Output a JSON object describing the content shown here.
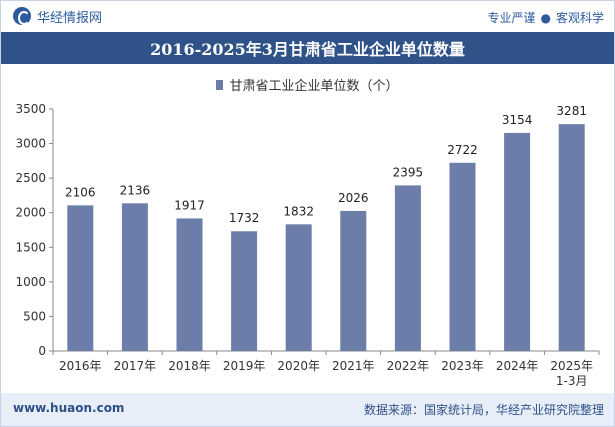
{
  "header": {
    "brand_name": "华经情报网",
    "tagline_left": "专业严谨",
    "tagline_right": "客观科学"
  },
  "footer": {
    "website": "www.huaon.com",
    "source": "数据来源：国家统计局，华经产业研究院整理"
  },
  "chart_data": {
    "type": "bar",
    "title": "2016-2025年3月甘肃省工业企业单位数量",
    "legend": "甘肃省工业企业单位数（个）",
    "categories": [
      "2016年",
      "2017年",
      "2018年",
      "2019年",
      "2020年",
      "2021年",
      "2022年",
      "2023年",
      "2024年",
      "2025年\n1-3月"
    ],
    "values": [
      2106,
      2136,
      1917,
      1732,
      1832,
      2026,
      2395,
      2722,
      3154,
      3281
    ],
    "yticks": [
      0,
      500,
      1000,
      1500,
      2000,
      2500,
      3000,
      3500
    ],
    "ylim": [
      0,
      3500
    ],
    "grid": false,
    "legend_position": "top-center",
    "bar_color": "#6b7da8"
  }
}
